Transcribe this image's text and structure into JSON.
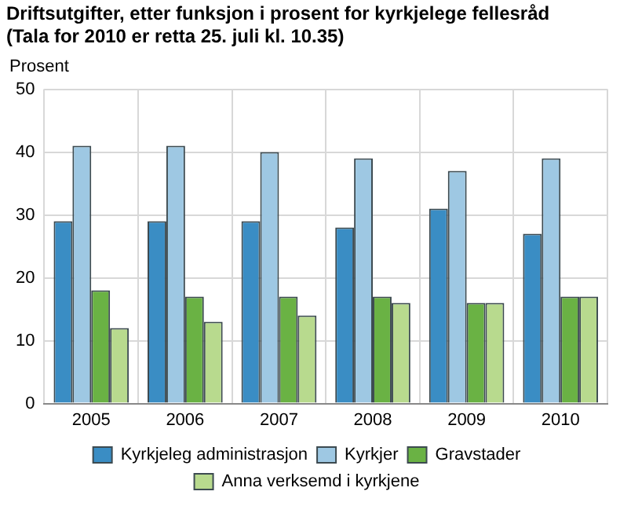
{
  "chart_data": {
    "type": "bar",
    "title": "Driftsutgifter, etter funksjon i prosent for kyrkjelege fellesråd",
    "subtitle": "(Tala for 2010 er retta 25. juli kl. 10.35)",
    "ylabel": "Prosent",
    "categories": [
      "2005",
      "2006",
      "2007",
      "2008",
      "2009",
      "2010"
    ],
    "series": [
      {
        "name": "Kyrkjeleg administrasjon",
        "color": "#3a8dc4",
        "values": [
          29,
          29,
          29,
          28,
          31,
          27
        ]
      },
      {
        "name": "Kyrkjer",
        "color": "#9ec8e3",
        "values": [
          41,
          41,
          40,
          39,
          37,
          39
        ]
      },
      {
        "name": "Gravstader",
        "color": "#6ab244",
        "values": [
          18,
          17,
          17,
          17,
          16,
          17
        ]
      },
      {
        "name": "Anna verksemd i kyrkjene",
        "color": "#b8da8e",
        "values": [
          12,
          13,
          14,
          16,
          16,
          17
        ]
      }
    ],
    "ylim": [
      0,
      50
    ],
    "yticks": [
      0,
      10,
      20,
      30,
      40,
      50
    ],
    "grid": true,
    "legend": "bottom"
  }
}
